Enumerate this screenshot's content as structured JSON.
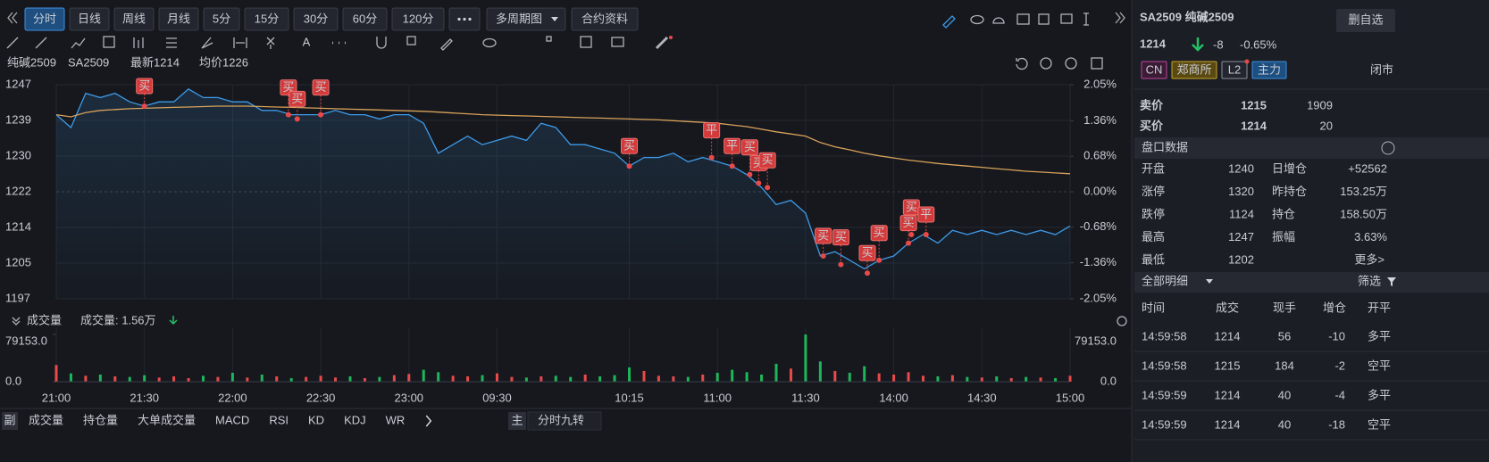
{
  "toolbar": {
    "tabs": [
      "分时",
      "日线",
      "周线",
      "月线",
      "5分",
      "15分",
      "30分",
      "60分",
      "120分"
    ],
    "more_periods": "多周期图",
    "contract": "合约资料"
  },
  "drawing_tools": {
    "text_tool": "A"
  },
  "info": {
    "name": "纯碱2509",
    "code": "SA2509",
    "latest": "最新1214",
    "avg": "均价1226"
  },
  "chart_data": [
    {
      "type": "line",
      "x": [
        0,
        5,
        10,
        15,
        20,
        25,
        30,
        35,
        40,
        45,
        50,
        55,
        60,
        65,
        70,
        75,
        80,
        85,
        90,
        95,
        100,
        105,
        110,
        115,
        120,
        125,
        130,
        135,
        140,
        145,
        150,
        155,
        160,
        165,
        170,
        175,
        180,
        185,
        190,
        195,
        200,
        205,
        210,
        215,
        220,
        225,
        230,
        235,
        240,
        245,
        250,
        255,
        260,
        265,
        270,
        275,
        280,
        285,
        290,
        295,
        300,
        305,
        310,
        315,
        320,
        325,
        330,
        335,
        340,
        345
      ],
      "xlim": [
        0,
        345
      ],
      "ylim": [
        1197,
        1247
      ],
      "yticks": [
        1247,
        {
          "value": 1238.67,
          "label": "1239"
        },
        {
          "value": 1230.33,
          "label": "1230"
        },
        1222,
        {
          "value": 1213.67,
          "label": "1214"
        },
        {
          "value": 1205.33,
          "label": "1205"
        },
        1197
      ],
      "y2lim": [
        -2.05,
        2.05
      ],
      "y2ticks": [
        {
          "value": 2.05,
          "label": "2.05%"
        },
        {
          "value": 1.36,
          "label": "1.36%"
        },
        {
          "value": 0.68,
          "label": "0.68%"
        },
        {
          "value": 0,
          "label": "0.00%"
        },
        {
          "value": -0.68,
          "label": "-0.68%"
        },
        {
          "value": -1.36,
          "label": "-1.36%"
        },
        {
          "value": -2.05,
          "label": "-2.05%"
        }
      ],
      "grid": true,
      "series": [
        {
          "color": "#3d9be9",
          "values": [
            1240,
            1237,
            1245,
            1244,
            1245,
            1243,
            1242,
            1243,
            1243,
            1246,
            1244,
            1244,
            1243,
            1243,
            1241,
            1241,
            1240,
            1240,
            1240,
            1241,
            1240,
            1240,
            1239,
            1240,
            1240,
            1238,
            1231,
            1233,
            1235,
            1233,
            1234,
            1235,
            1234,
            1238,
            1237,
            1233,
            1233,
            1232,
            1231,
            1228,
            1230,
            1230,
            1231,
            1229,
            1230,
            1229,
            1228,
            1226,
            1223,
            1219,
            1220,
            1217,
            1207,
            1208,
            1206,
            1204,
            1206,
            1207,
            1210,
            1212,
            1210,
            1213,
            1212,
            1213,
            1212,
            1213,
            1212,
            1213,
            1212,
            1214
          ]
        },
        {
          "color": "#d9a25a",
          "values": [
            1240,
            1239.5,
            1240.5,
            1241,
            1241.2,
            1241.4,
            1241.5,
            1241.6,
            1241.7,
            1241.8,
            1241.9,
            1242,
            1242,
            1242,
            1241.9,
            1241.8,
            1241.7,
            1241.6,
            1241.5,
            1241.4,
            1241.3,
            1241.2,
            1241.1,
            1241,
            1240.9,
            1240.8,
            1240.6,
            1240.4,
            1240.2,
            1240,
            1239.9,
            1239.8,
            1239.7,
            1239.6,
            1239.5,
            1239.4,
            1239.3,
            1239.2,
            1239.1,
            1239,
            1238.9,
            1238.8,
            1238.6,
            1238.4,
            1238.2,
            1238,
            1237.6,
            1237.2,
            1236.6,
            1236,
            1235.5,
            1235,
            1233.5,
            1232.5,
            1231.8,
            1231,
            1230.4,
            1229.9,
            1229.4,
            1229,
            1228.6,
            1228.3,
            1228,
            1227.7,
            1227.4,
            1227.1,
            1226.8,
            1226.6,
            1226.4,
            1226.2
          ]
        }
      ],
      "markers": [
        {
          "label": "买",
          "x": 30,
          "y": 1242
        },
        {
          "label": "买",
          "x": 79,
          "y": 1240
        },
        {
          "label": "买",
          "x": 82,
          "y": 1239
        },
        {
          "label": "买",
          "x": 90,
          "y": 1240
        },
        {
          "label": "买",
          "x": 195,
          "y": 1228
        },
        {
          "label": "平",
          "x": 223,
          "y": 1230
        },
        {
          "label": "平",
          "x": 230,
          "y": 1228
        },
        {
          "label": "买",
          "x": 236,
          "y": 1226
        },
        {
          "label": "买",
          "x": 239,
          "y": 1224
        },
        {
          "label": "买",
          "x": 242,
          "y": 1223
        },
        {
          "label": "买",
          "x": 261,
          "y": 1207
        },
        {
          "label": "买",
          "x": 267,
          "y": 1205
        },
        {
          "label": "买",
          "x": 276,
          "y": 1203
        },
        {
          "label": "买",
          "x": 280,
          "y": 1206
        },
        {
          "label": "买",
          "x": 290,
          "y": 1210
        },
        {
          "label": "买",
          "x": 291,
          "y": 1212
        },
        {
          "label": "平",
          "x": 296,
          "y": 1212
        }
      ]
    },
    {
      "type": "bar",
      "title": "成交量",
      "subtitle": "成交量: 1.56万",
      "x": [
        0,
        5,
        10,
        15,
        20,
        25,
        30,
        35,
        40,
        45,
        50,
        55,
        60,
        65,
        70,
        75,
        80,
        85,
        90,
        95,
        100,
        105,
        110,
        115,
        120,
        125,
        130,
        135,
        140,
        145,
        150,
        155,
        160,
        165,
        170,
        175,
        180,
        185,
        190,
        195,
        200,
        205,
        210,
        215,
        220,
        225,
        230,
        235,
        240,
        245,
        250,
        255,
        260,
        265,
        270,
        275,
        280,
        285,
        290,
        295,
        300,
        305,
        310,
        315,
        320,
        325,
        330,
        335,
        340,
        345
      ],
      "values": [
        28000,
        14000,
        10000,
        12000,
        9000,
        8000,
        11000,
        7000,
        9000,
        6000,
        10000,
        8000,
        15000,
        7000,
        12000,
        9000,
        6000,
        8000,
        10000,
        7000,
        9000,
        6000,
        8000,
        11000,
        13000,
        20000,
        16000,
        10000,
        9000,
        11000,
        14000,
        8000,
        7000,
        9000,
        10000,
        8000,
        12000,
        9000,
        11000,
        24000,
        18000,
        10000,
        9000,
        8000,
        12000,
        15000,
        20000,
        16000,
        12000,
        30000,
        22000,
        79153,
        34000,
        18000,
        15000,
        26000,
        14000,
        12000,
        16000,
        10000,
        9000,
        11000,
        8000,
        7000,
        9000,
        6000,
        8000,
        7000,
        6000,
        10000
      ],
      "xlim": [
        0,
        345
      ],
      "xticks": [
        {
          "value": 0,
          "label": "21:00"
        },
        {
          "value": 30,
          "label": "21:30"
        },
        {
          "value": 60,
          "label": "22:00"
        },
        {
          "value": 90,
          "label": "22:30"
        },
        {
          "value": 120,
          "label": "23:00"
        },
        {
          "value": 150,
          "label": "09:30"
        },
        {
          "value": 195,
          "label": "10:15"
        },
        {
          "value": 225,
          "label": "11:00"
        },
        {
          "value": 255,
          "label": "11:30"
        },
        {
          "value": 285,
          "label": "14:00"
        },
        {
          "value": 315,
          "label": "14:30"
        },
        {
          "value": 345,
          "label": "15:00"
        }
      ],
      "ylim": [
        0,
        79153
      ],
      "yticks": [
        {
          "value": 79153,
          "label": "79153.0"
        },
        {
          "value": 0,
          "label": "0.0"
        }
      ],
      "up_color": "#e84a4a",
      "down_color": "#1fb55a"
    }
  ],
  "bottom_tabs": {
    "sub": "副",
    "indicators": [
      "成交量",
      "持仓量",
      "大单成交量",
      "MACD",
      "RSI",
      "KD",
      "KDJ",
      "WR"
    ],
    "main": "主",
    "main_indicator": "分时九转"
  },
  "quote": {
    "header": "SA2509  纯碱2509",
    "delete": "删自选",
    "price": "1214",
    "change": "-8",
    "change_pct": "-0.65%",
    "tags": [
      "CN",
      "郑商所",
      "L2",
      "主力"
    ],
    "status": "闭市",
    "ask": {
      "label": "卖价",
      "price": "1215",
      "volume": "1909"
    },
    "bid": {
      "label": "买价",
      "price": "1214",
      "volume": "20"
    },
    "stats_title": "盘口数据",
    "stats": [
      [
        "开盘",
        "1240",
        "日增仓",
        "+52562"
      ],
      [
        "涨停",
        "1320",
        "昨持仓",
        "153.25万"
      ],
      [
        "跌停",
        "1124",
        "持仓",
        "158.50万"
      ],
      [
        "最高",
        "1247",
        "振幅",
        "3.63%"
      ],
      [
        "最低",
        "1202"
      ]
    ],
    "more": "更多>",
    "detail_title": "全部明细",
    "filter": "筛选",
    "columns": [
      "时间",
      "成交",
      "现手",
      "增仓",
      "开平"
    ],
    "rows": [
      [
        "14:59:58",
        "1214",
        "56",
        "-10",
        "多平"
      ],
      [
        "14:59:58",
        "1215",
        "184",
        "-2",
        "空平"
      ],
      [
        "14:59:59",
        "1214",
        "40",
        "-4",
        "多平"
      ],
      [
        "14:59:59",
        "1214",
        "40",
        "-18",
        "空平"
      ]
    ]
  }
}
